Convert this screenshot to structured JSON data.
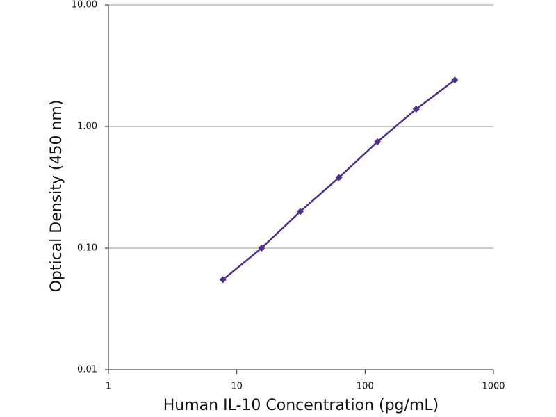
{
  "chart_data": {
    "type": "scatter",
    "x_label": "Human IL-10 Concentration (pg/mL)",
    "y_label": "Optical Density (450 nm)",
    "series": [
      {
        "color": "#4f2d8f",
        "x": [
          7.8,
          15.6,
          31.25,
          62.5,
          125,
          250,
          500
        ],
        "values": [
          0.055,
          0.1,
          0.2,
          0.38,
          0.75,
          1.39,
          2.41
        ]
      }
    ],
    "x_log": true,
    "y_log": true,
    "xlim": [
      1,
      1000
    ],
    "xticks": [
      1,
      10,
      100,
      1000
    ],
    "ylim": [
      0.01,
      10
    ],
    "yticks": [
      {
        "value": 0.01,
        "label": "0.01"
      },
      {
        "value": 0.1,
        "label": "0.10"
      },
      {
        "value": 1,
        "label": "1.00"
      },
      {
        "value": 10,
        "label": "10.00"
      }
    ],
    "grid": true
  }
}
